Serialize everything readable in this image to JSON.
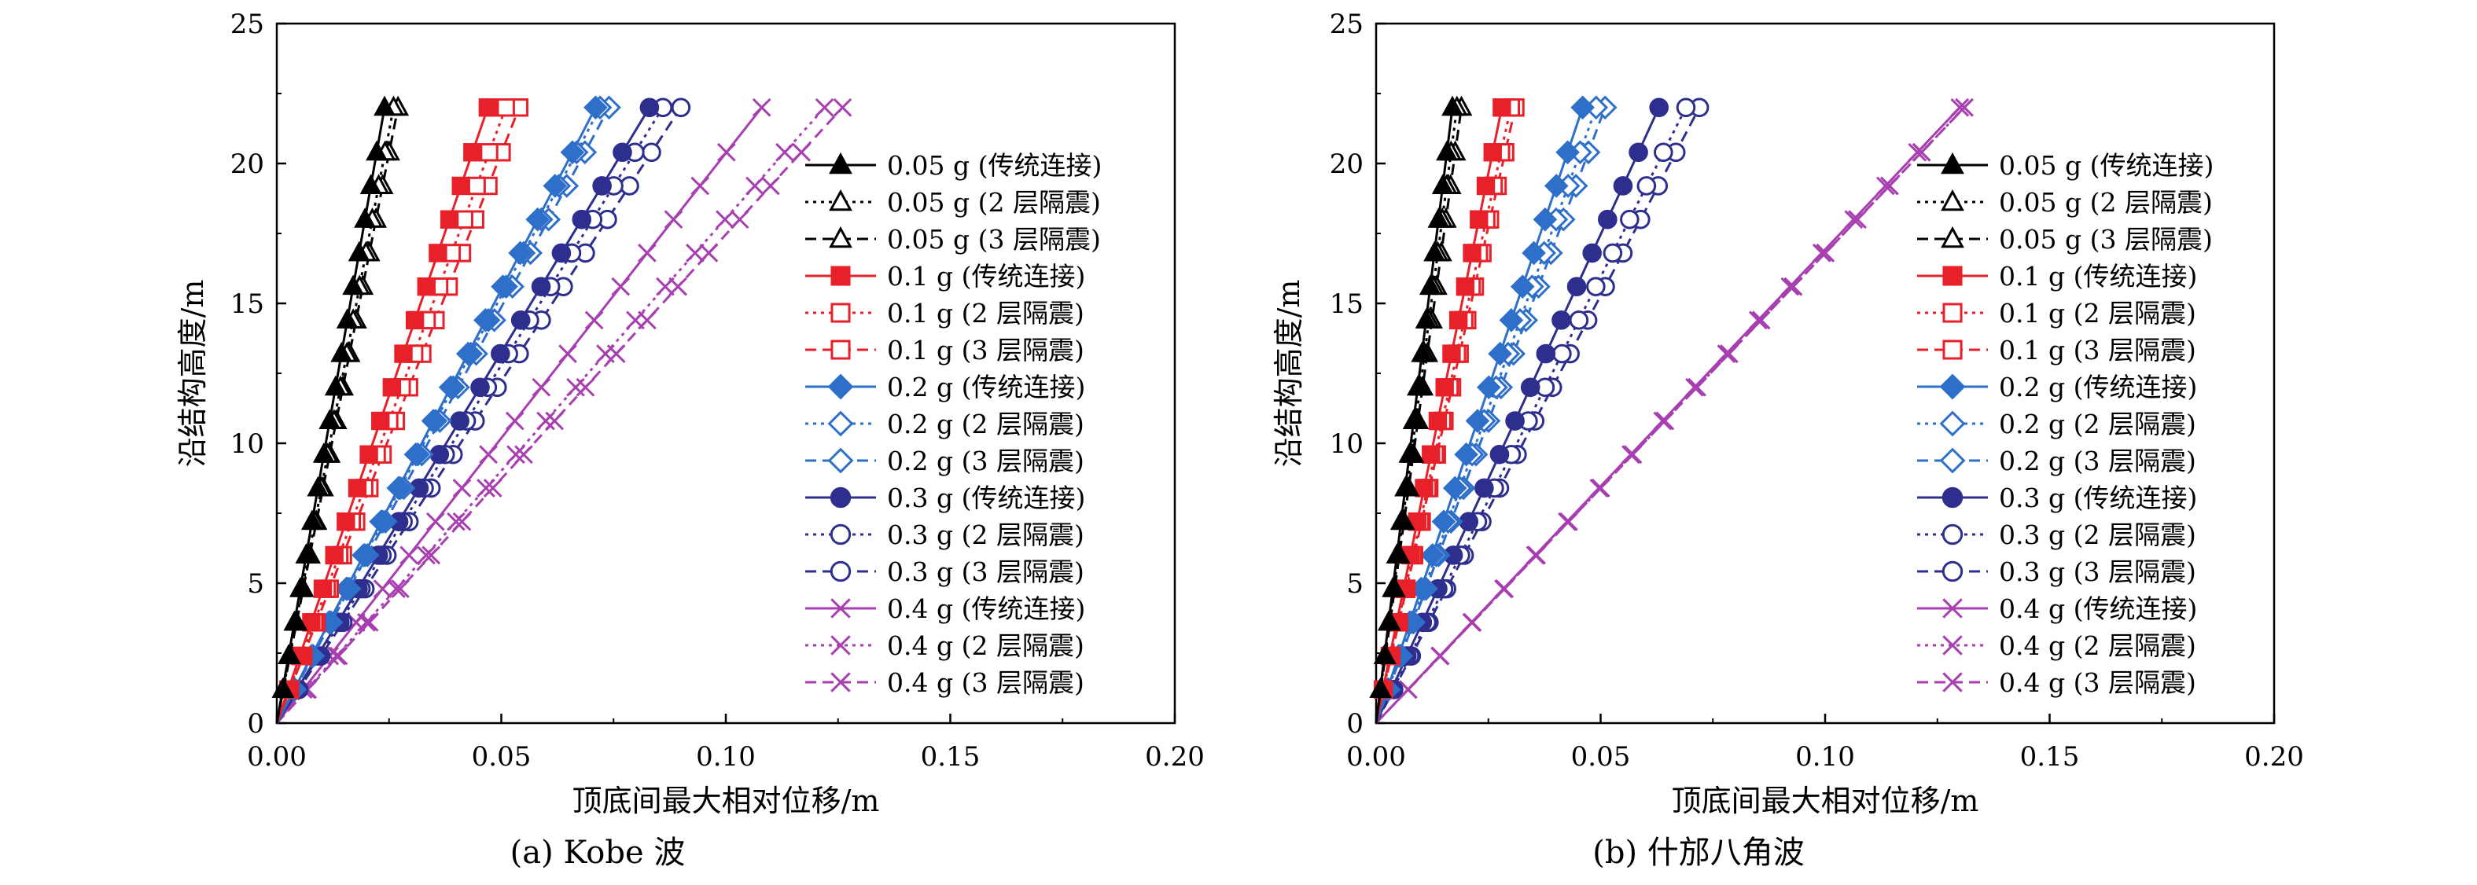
{
  "colors": {
    "0.05g": "#000000",
    "0.1g": "#e8202a",
    "0.2g": "#2e6fc9",
    "0.3g": "#2e2e8f",
    "0.4g": "#a83fb0"
  },
  "chart_data": [
    {
      "type": "line",
      "caption": "(a) Kobe 波",
      "xlabel": "顶底间最大相对位移/m",
      "ylabel": "沿结构高度/m",
      "xlim": [
        0,
        0.2
      ],
      "ylim": [
        0,
        25
      ],
      "xticks": [
        "0.00",
        "0.05",
        "0.10",
        "0.15",
        "0.20"
      ],
      "yticks": [
        "0",
        "5",
        "10",
        "15",
        "20",
        "25"
      ],
      "legend_position": "right",
      "heights": [
        0,
        1.2,
        2.4,
        3.6,
        4.8,
        6.0,
        7.2,
        8.4,
        9.6,
        10.8,
        12.0,
        13.2,
        14.4,
        15.6,
        16.8,
        18.0,
        19.2,
        20.4,
        22.0
      ],
      "series": [
        {
          "name": "0.05 g (传统连接)",
          "level": "0.05g",
          "marker": "tri",
          "filled": true,
          "dash": "solid",
          "top": 0.024
        },
        {
          "name": "0.05 g (2 层隔震)",
          "level": "0.05g",
          "marker": "tri",
          "filled": false,
          "dash": "dotted",
          "top": 0.026
        },
        {
          "name": "0.05 g (3 层隔震)",
          "level": "0.05g",
          "marker": "tri",
          "filled": false,
          "dash": "dashed",
          "top": 0.027
        },
        {
          "name": "0.1 g (传统连接)",
          "level": "0.1g",
          "marker": "sq",
          "filled": true,
          "dash": "solid",
          "top": 0.047
        },
        {
          "name": "0.1 g (2 层隔震)",
          "level": "0.1g",
          "marker": "sq",
          "filled": false,
          "dash": "dotted",
          "top": 0.051
        },
        {
          "name": "0.1 g (3 层隔震)",
          "level": "0.1g",
          "marker": "sq",
          "filled": false,
          "dash": "dashed",
          "top": 0.054
        },
        {
          "name": "0.2 g (传统连接)",
          "level": "0.2g",
          "marker": "dia",
          "filled": true,
          "dash": "solid",
          "top": 0.071
        },
        {
          "name": "0.2 g (2 层隔震)",
          "level": "0.2g",
          "marker": "dia",
          "filled": false,
          "dash": "dotted",
          "top": 0.072
        },
        {
          "name": "0.2 g (3 层隔震)",
          "level": "0.2g",
          "marker": "dia",
          "filled": false,
          "dash": "dashed",
          "top": 0.074
        },
        {
          "name": "0.3 g (传统连接)",
          "level": "0.3g",
          "marker": "cir",
          "filled": true,
          "dash": "solid",
          "top": 0.083
        },
        {
          "name": "0.3 g (2 层隔震)",
          "level": "0.3g",
          "marker": "cir",
          "filled": false,
          "dash": "dotted",
          "top": 0.086
        },
        {
          "name": "0.3 g (3 层隔震)",
          "level": "0.3g",
          "marker": "cir",
          "filled": false,
          "dash": "dashed",
          "top": 0.09
        },
        {
          "name": "0.4 g (传统连接)",
          "level": "0.4g",
          "marker": "x",
          "filled": false,
          "dash": "solid",
          "top": 0.108
        },
        {
          "name": "0.4 g (2 层隔震)",
          "level": "0.4g",
          "marker": "x",
          "filled": false,
          "dash": "dotted",
          "top": 0.122
        },
        {
          "name": "0.4 g (3 层隔震)",
          "level": "0.4g",
          "marker": "x",
          "filled": false,
          "dash": "dashed",
          "top": 0.126
        }
      ]
    },
    {
      "type": "line",
      "caption": "(b) 什邡八角波",
      "xlabel": "顶底间最大相对位移/m",
      "ylabel": "沿结构高度/m",
      "xlim": [
        0,
        0.2
      ],
      "ylim": [
        0,
        25
      ],
      "xticks": [
        "0.00",
        "0.05",
        "0.10",
        "0.15",
        "0.20"
      ],
      "yticks": [
        "0",
        "5",
        "10",
        "15",
        "20",
        "25"
      ],
      "legend_position": "right",
      "heights": [
        0,
        1.2,
        2.4,
        3.6,
        4.8,
        6.0,
        7.2,
        8.4,
        9.6,
        10.8,
        12.0,
        13.2,
        14.4,
        15.6,
        16.8,
        18.0,
        19.2,
        20.4,
        22.0
      ],
      "series": [
        {
          "name": "0.05 g (传统连接)",
          "level": "0.05g",
          "marker": "tri",
          "filled": true,
          "dash": "solid",
          "top": 0.017
        },
        {
          "name": "0.05 g (2 层隔震)",
          "level": "0.05g",
          "marker": "tri",
          "filled": false,
          "dash": "dotted",
          "top": 0.018
        },
        {
          "name": "0.05 g (3 层隔震)",
          "level": "0.05g",
          "marker": "tri",
          "filled": false,
          "dash": "dashed",
          "top": 0.019
        },
        {
          "name": "0.1 g (传统连接)",
          "level": "0.1g",
          "marker": "sq",
          "filled": true,
          "dash": "solid",
          "top": 0.028
        },
        {
          "name": "0.1 g (2 层隔震)",
          "level": "0.1g",
          "marker": "sq",
          "filled": false,
          "dash": "dotted",
          "top": 0.03
        },
        {
          "name": "0.1 g (3 层隔震)",
          "level": "0.1g",
          "marker": "sq",
          "filled": false,
          "dash": "dashed",
          "top": 0.031
        },
        {
          "name": "0.2 g (传统连接)",
          "level": "0.2g",
          "marker": "dia",
          "filled": true,
          "dash": "solid",
          "top": 0.046
        },
        {
          "name": "0.2 g (2 层隔震)",
          "level": "0.2g",
          "marker": "dia",
          "filled": false,
          "dash": "dotted",
          "top": 0.049
        },
        {
          "name": "0.2 g (3 层隔震)",
          "level": "0.2g",
          "marker": "dia",
          "filled": false,
          "dash": "dashed",
          "top": 0.051
        },
        {
          "name": "0.3 g (传统连接)",
          "level": "0.3g",
          "marker": "cir",
          "filled": true,
          "dash": "solid",
          "top": 0.063
        },
        {
          "name": "0.3 g (2 层隔震)",
          "level": "0.3g",
          "marker": "cir",
          "filled": false,
          "dash": "dotted",
          "top": 0.069
        },
        {
          "name": "0.3 g (3 层隔震)",
          "level": "0.3g",
          "marker": "cir",
          "filled": false,
          "dash": "dashed",
          "top": 0.072
        },
        {
          "name": "0.4 g (传统连接)",
          "level": "0.4g",
          "marker": "x",
          "filled": false,
          "dash": "solid",
          "top": 0.13
        },
        {
          "name": "0.4 g (2 层隔震)",
          "level": "0.4g",
          "marker": "x",
          "filled": false,
          "dash": "dotted",
          "top": 0.131
        },
        {
          "name": "0.4 g (3 层隔震)",
          "level": "0.4g",
          "marker": "x",
          "filled": false,
          "dash": "dashed",
          "top": 0.131
        }
      ]
    }
  ]
}
